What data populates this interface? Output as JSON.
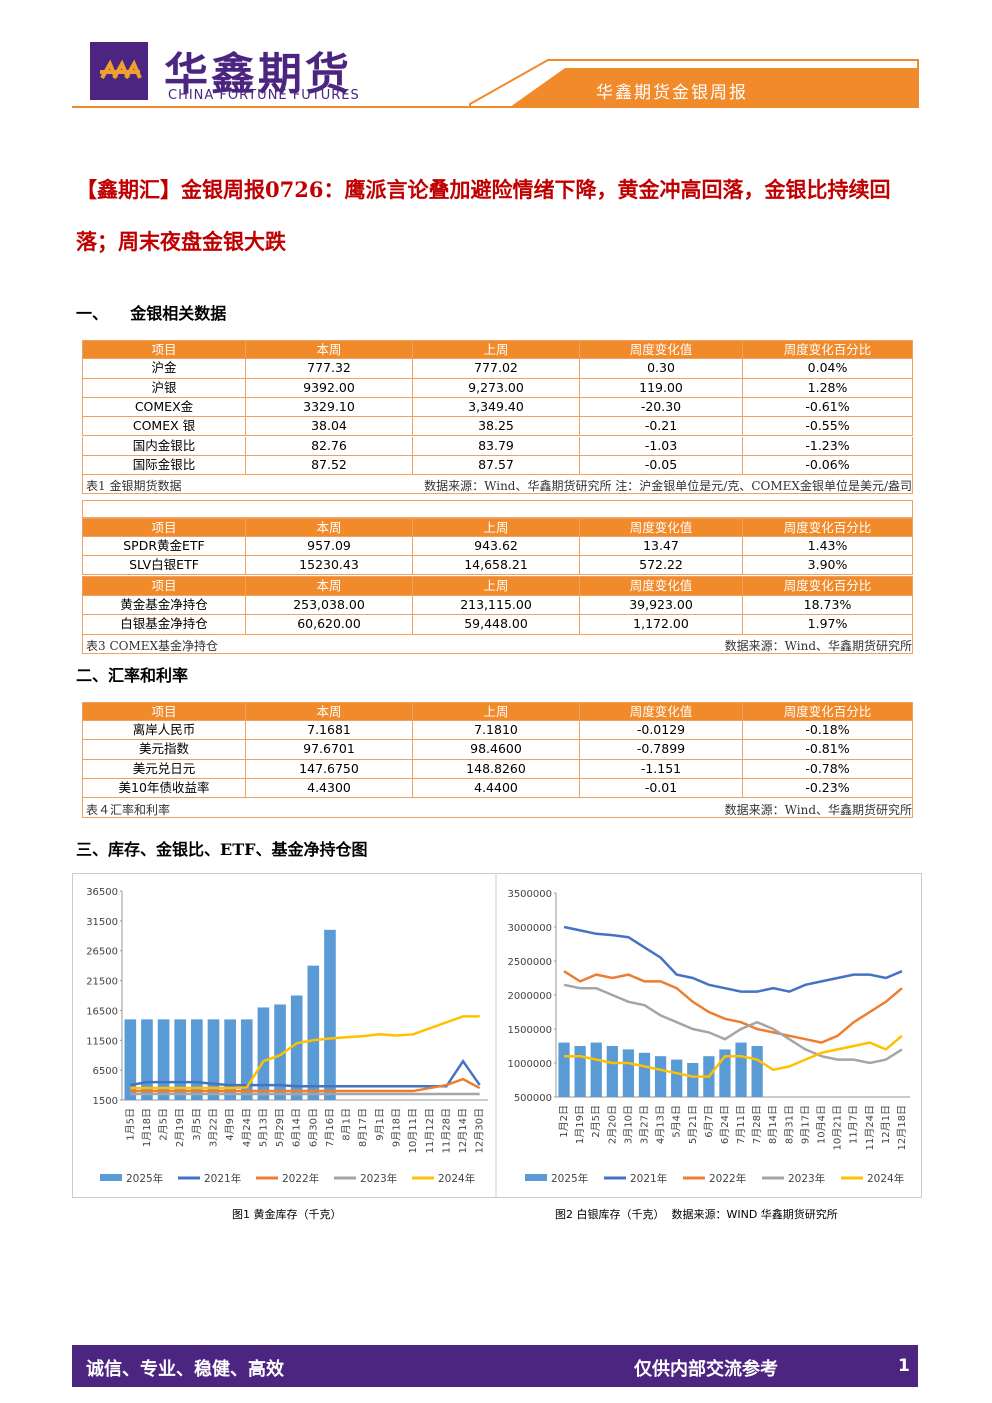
{
  "header": {
    "logo_cn": "华鑫期货",
    "logo_en": "CHINA FORTUNE FUTURES",
    "report_name": "华鑫期货金银周报"
  },
  "title": "【鑫期汇】金银周报0726：鹰派言论叠加避险情绪下降，黄金冲高回落，金银比持续回落；周末夜盘金银大跌",
  "sections": [
    "一、    金银相关数据",
    "二、汇率和利率",
    "三、库存、金银比、ETF、基金净持仓图"
  ],
  "table1": {
    "header": [
      "项目",
      "本周",
      "上周",
      "周度变化值",
      "周度变化百分比"
    ],
    "rows": [
      [
        "沪金",
        "777.32",
        "777.02",
        "0.30",
        "0.04%"
      ],
      [
        "沪银",
        "9392.00",
        "9,273.00",
        "119.00",
        "1.28%"
      ],
      [
        "COMEX金",
        "3329.10",
        "3,349.40",
        "-20.30",
        "-0.61%"
      ],
      [
        "COMEX 银",
        "38.04",
        "38.25",
        "-0.21",
        "-0.55%"
      ],
      [
        "国内金银比",
        "82.76",
        "83.79",
        "-1.03",
        "-1.23%"
      ],
      [
        "国际金银比",
        "87.52",
        "87.57",
        "-0.05",
        "-0.06%"
      ]
    ],
    "note_left": "表1  金银期货数据",
    "note_right": "数据来源：Wind、华鑫期货研究所  注：沪金银单位是元/克、COMEX金银单位是美元/盎司"
  },
  "table2": {
    "header": [
      "项目",
      "本周",
      "上周",
      "周度变化值",
      "周度变化百分比"
    ],
    "rows": [
      [
        "SPDR黄金ETF",
        "957.09",
        "943.62",
        "13.47",
        "1.43%"
      ],
      [
        "SLV白银ETF",
        "15230.43",
        "14,658.21",
        "572.22",
        "3.90%"
      ]
    ]
  },
  "table3": {
    "header": [
      "项目",
      "本周",
      "上周",
      "周度变化值",
      "周度变化百分比"
    ],
    "rows": [
      [
        "黄金基金净持仓",
        "253,038.00",
        "213,115.00",
        "39,923.00",
        "18.73%"
      ],
      [
        "白银基金净持仓",
        "60,620.00",
        "59,448.00",
        "1,172.00",
        "1.97%"
      ]
    ],
    "note_left": "表3  COMEX基金净持仓",
    "note_right": "数据来源：Wind、华鑫期货研究所"
  },
  "table4": {
    "header": [
      "项目",
      "本周",
      "上周",
      "周度变化值",
      "周度变化百分比"
    ],
    "rows": [
      [
        "离岸人民币",
        "7.1681",
        "7.1810",
        "-0.0129",
        "-0.18%"
      ],
      [
        "美元指数",
        "97.6701",
        "98.4600",
        "-0.7899",
        "-0.81%"
      ],
      [
        "美元兑日元",
        "147.6750",
        "148.8260",
        "-1.151",
        "-0.78%"
      ],
      [
        "美10年债收益率",
        "4.4300",
        "4.4400",
        "-0.01",
        "-0.23%"
      ]
    ],
    "note_left": "表４汇率和利率",
    "note_right": "数据来源：Wind、华鑫期货研究所"
  },
  "charts": [
    {
      "type": "bar-line",
      "caption": "图1 黄金库存（千克）",
      "categories": [
        "1月5日",
        "1月18日",
        "2月5日",
        "2月19日",
        "3月5日",
        "3月22日",
        "4月9日",
        "4月24日",
        "5月13日",
        "5月29日",
        "6月14日",
        "6月30日",
        "7月16日",
        "8月1日",
        "8月17日",
        "9月1日",
        "9月18日",
        "10月11日",
        "11月12日",
        "11月28日",
        "12月14日",
        "12月30日"
      ],
      "ylim": [
        1500,
        36500
      ],
      "yticks": [
        1500,
        6500,
        11500,
        16500,
        21500,
        26500,
        31500,
        36500
      ],
      "series": [
        {
          "name": "2025年",
          "kind": "bar",
          "color": "#5b9bd5",
          "values": [
            15000,
            15000,
            15000,
            15000,
            15000,
            15000,
            15000,
            15000,
            17000,
            17500,
            19000,
            24000,
            30000,
            null,
            null,
            null,
            null,
            null,
            null,
            null,
            null,
            null
          ]
        },
        {
          "name": "2021年",
          "kind": "line",
          "color": "#4472c4",
          "values": [
            4000,
            4500,
            4500,
            4500,
            4500,
            4200,
            4000,
            4000,
            4000,
            4000,
            3800,
            3800,
            3800,
            3800,
            3800,
            3800,
            3800,
            3800,
            3800,
            3800,
            8000,
            4000
          ]
        },
        {
          "name": "2022年",
          "kind": "line",
          "color": "#ed7d31",
          "values": [
            3000,
            3000,
            3000,
            3000,
            3000,
            3000,
            3000,
            3000,
            3000,
            3000,
            3000,
            3000,
            3000,
            3000,
            3000,
            3000,
            3000,
            3000,
            3500,
            4000,
            5000,
            3500
          ]
        },
        {
          "name": "2023年",
          "kind": "line",
          "color": "#a5a5a5",
          "values": [
            2500,
            2500,
            2500,
            2500,
            2500,
            2500,
            2500,
            2500,
            2500,
            2500,
            2500,
            2500,
            2500,
            2500,
            2500,
            2500,
            2500,
            2500,
            2500,
            2500,
            2500,
            2500
          ]
        },
        {
          "name": "2024年",
          "kind": "line",
          "color": "#ffc000",
          "values": [
            3500,
            3500,
            3500,
            3500,
            3500,
            3500,
            3500,
            3600,
            8000,
            9000,
            11000,
            11500,
            11800,
            12000,
            12200,
            12500,
            12300,
            12500,
            13500,
            14500,
            15500,
            15500
          ]
        }
      ]
    },
    {
      "type": "bar-line",
      "caption": "图2 白银库存（千克）  数据来源：WIND 华鑫期货研究所",
      "categories": [
        "1月2日",
        "1月19日",
        "2月5日",
        "2月20日",
        "3月10日",
        "3月27日",
        "4月13日",
        "5月4日",
        "5月21日",
        "6月7日",
        "6月24日",
        "7月11日",
        "7月28日",
        "8月14日",
        "8月31日",
        "9月17日",
        "10月4日",
        "10月21日",
        "11月7日",
        "11月24日",
        "12月1日",
        "12月18日"
      ],
      "ylim": [
        500000,
        3500000
      ],
      "yticks": [
        500000,
        1000000,
        1500000,
        2000000,
        2500000,
        3000000,
        3500000
      ],
      "series": [
        {
          "name": "2025年",
          "kind": "bar",
          "color": "#5b9bd5",
          "values": [
            1300000,
            1250000,
            1300000,
            1250000,
            1200000,
            1150000,
            1100000,
            1050000,
            1000000,
            1100000,
            1200000,
            1300000,
            1250000,
            null,
            null,
            null,
            null,
            null,
            null,
            null,
            null,
            null
          ]
        },
        {
          "name": "2021年",
          "kind": "line",
          "color": "#4472c4",
          "values": [
            3000000,
            2950000,
            2900000,
            2880000,
            2850000,
            2700000,
            2550000,
            2300000,
            2250000,
            2150000,
            2100000,
            2050000,
            2050000,
            2100000,
            2050000,
            2150000,
            2200000,
            2250000,
            2300000,
            2300000,
            2250000,
            2350000
          ]
        },
        {
          "name": "2022年",
          "kind": "line",
          "color": "#ed7d31",
          "values": [
            2350000,
            2200000,
            2300000,
            2250000,
            2300000,
            2200000,
            2200000,
            2100000,
            1900000,
            1750000,
            1650000,
            1600000,
            1500000,
            1450000,
            1400000,
            1350000,
            1300000,
            1400000,
            1600000,
            1750000,
            1900000,
            2100000
          ]
        },
        {
          "name": "2023年",
          "kind": "line",
          "color": "#a5a5a5",
          "values": [
            2150000,
            2100000,
            2100000,
            2000000,
            1900000,
            1850000,
            1700000,
            1600000,
            1500000,
            1450000,
            1350000,
            1500000,
            1600000,
            1500000,
            1350000,
            1200000,
            1100000,
            1050000,
            1050000,
            1000000,
            1050000,
            1200000
          ]
        },
        {
          "name": "2024年",
          "kind": "line",
          "color": "#ffc000",
          "values": [
            1100000,
            1100000,
            1050000,
            1000000,
            1000000,
            950000,
            900000,
            850000,
            800000,
            800000,
            1100000,
            1100000,
            1050000,
            900000,
            950000,
            1050000,
            1150000,
            1200000,
            1250000,
            1300000,
            1200000,
            1400000
          ]
        }
      ]
    }
  ],
  "footer": {
    "left": "诚信、专业、稳健、高效",
    "right": "仅供内部交流参考",
    "page": "1"
  }
}
